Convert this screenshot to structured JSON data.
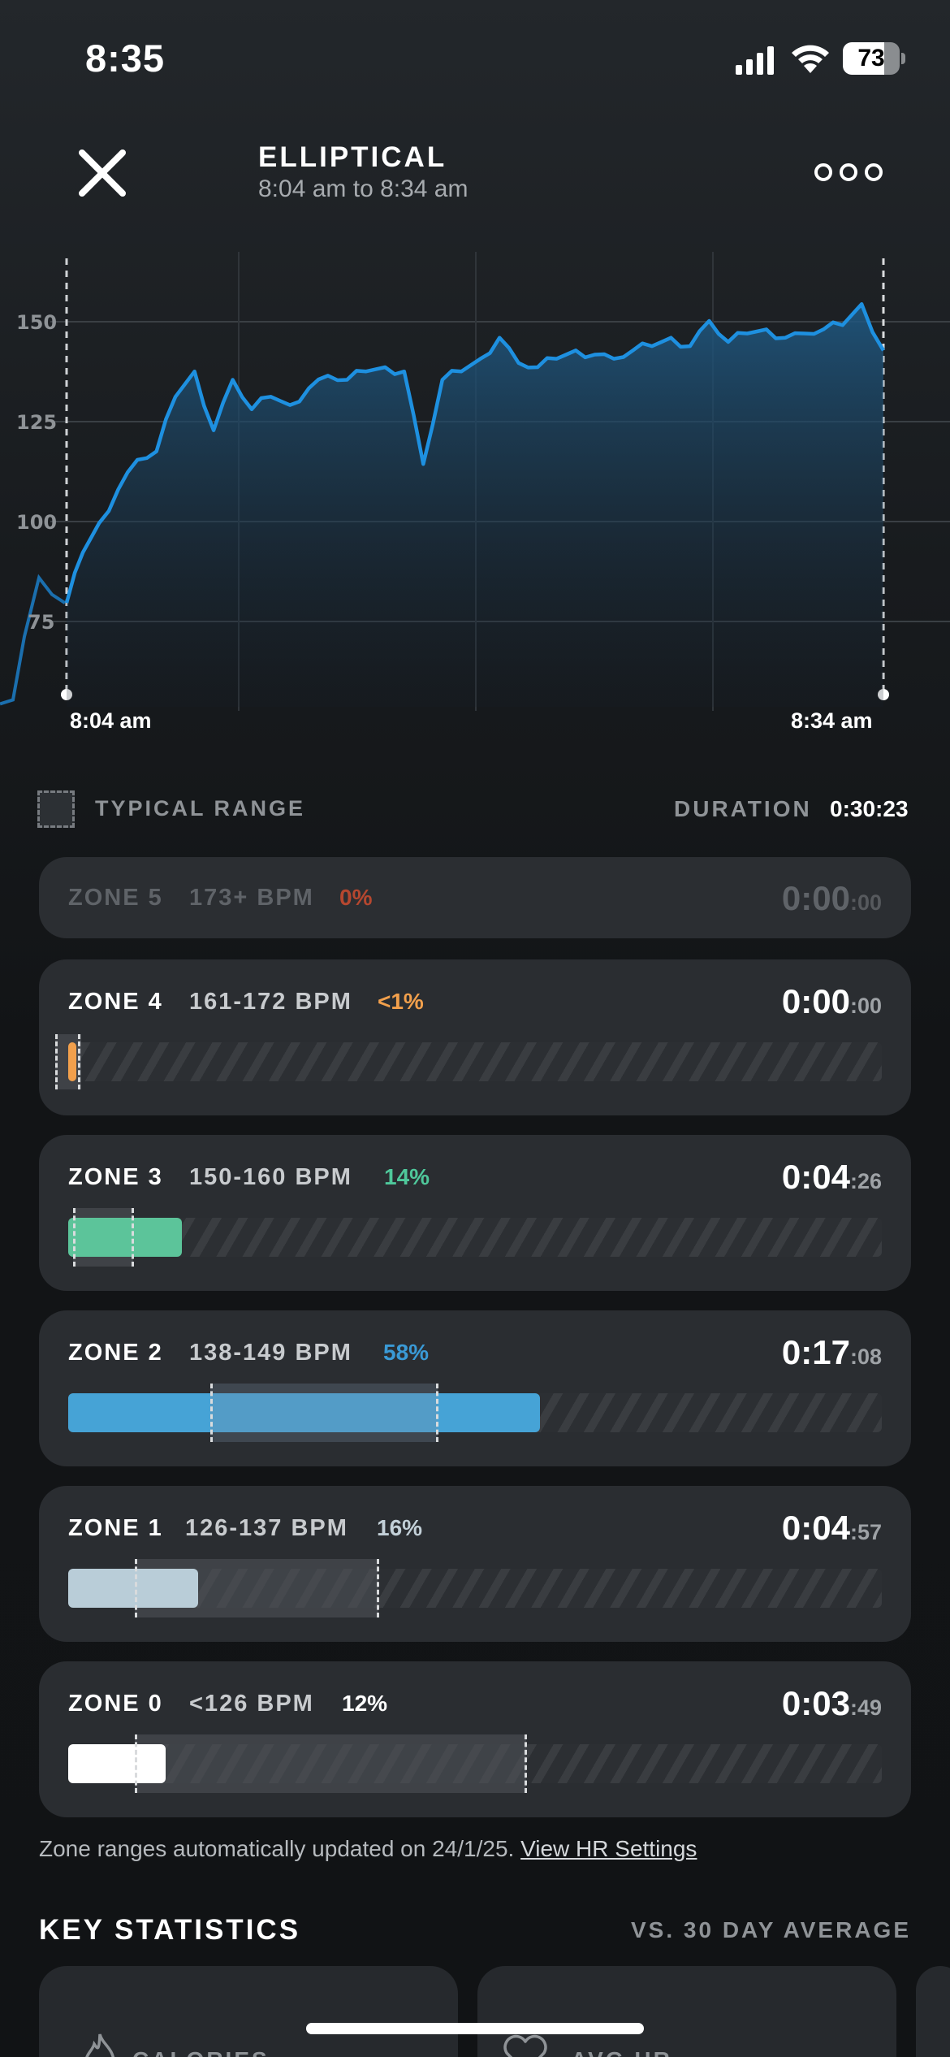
{
  "status_bar": {
    "time": "8:35",
    "battery": "73"
  },
  "header": {
    "title": "ELLIPTICAL",
    "subtitle": "8:04 am to 8:34 am"
  },
  "chart_data": {
    "type": "area",
    "series": [
      {
        "name": "",
        "color": "#1e90e0",
        "x": [
          0,
          0.6,
          1.2,
          1.9,
          2.6,
          3.3,
          4.0,
          4.7,
          5.4,
          6.1,
          6.8,
          7.5,
          8.2,
          8.9,
          9.6,
          10.3,
          11.0,
          11.7,
          12.4,
          13.1,
          13.8,
          14.5,
          15.2,
          15.9,
          16.6,
          17.3,
          18.0,
          18.7,
          19.4,
          20.1,
          20.8,
          21.5,
          22.2,
          22.9,
          23.6,
          24.3,
          25.0,
          25.7,
          26.4,
          27.1,
          27.8,
          28.5,
          29.2,
          30.0
        ],
        "values": [
          86,
          98,
          105,
          113,
          120,
          122,
          135,
          141,
          127,
          139,
          132,
          135,
          133,
          137,
          140,
          139,
          141,
          142,
          141,
          119,
          139,
          141,
          144,
          149,
          143,
          142,
          144,
          146,
          145,
          144,
          146,
          147,
          149,
          147,
          153,
          148,
          150,
          151,
          149,
          150,
          151,
          152,
          157,
          146
        ]
      }
    ],
    "pre_series_values": [
      62,
      63,
      78,
      92,
      88,
      86
    ],
    "xlabel": "",
    "ylabel": "",
    "y_ticks": [
      150,
      125,
      100,
      75
    ],
    "ylim": [
      60,
      160
    ],
    "x_tick_labels": [
      "8:04 am",
      "8:34 am"
    ],
    "grid": true
  },
  "legend": {
    "typical_label": "TYPICAL RANGE",
    "duration_label": "DURATION",
    "duration_value": "0:30:23"
  },
  "zones": [
    {
      "name": "ZONE 5",
      "bpm": "173+ BPM",
      "pct": "0%",
      "pct_color": "#b5472f",
      "time_main": "0:00",
      "time_secs": ":00",
      "dim": true
    },
    {
      "name": "ZONE 4",
      "bpm": "161-172 BPM",
      "pct": "<1%",
      "pct_color": "#f2a04c",
      "time_main": "0:00",
      "time_secs": ":00",
      "fill_fraction": 0.01,
      "fill_color": "#f2a04c"
    },
    {
      "name": "ZONE 3",
      "bpm": "150-160 BPM",
      "pct": "14%",
      "pct_color": "#4fc89b",
      "time_main": "0:04",
      "time_secs": ":26",
      "fill_fraction": 0.14,
      "fill_color": "#5cc49a"
    },
    {
      "name": "ZONE 2",
      "bpm": "138-149 BPM",
      "pct": "58%",
      "pct_color": "#3a9ad6",
      "time_main": "0:17",
      "time_secs": ":08",
      "fill_fraction": 0.58,
      "fill_color": "#46a3d6"
    },
    {
      "name": "ZONE 1",
      "bpm": "126-137 BPM",
      "pct": "16%",
      "pct_color": "#c3d0d8",
      "time_main": "0:04",
      "time_secs": ":57",
      "fill_fraction": 0.16,
      "fill_color": "#b9cdd8"
    },
    {
      "name": "ZONE 0",
      "bpm": "<126 BPM",
      "pct": "12%",
      "pct_color": "#ffffff",
      "time_main": "0:03",
      "time_secs": ":49",
      "fill_fraction": 0.12,
      "fill_color": "#ffffff"
    }
  ],
  "footnote": {
    "text": "Zone ranges automatically updated on 24/1/25. ",
    "link": "View HR Settings"
  },
  "key_statistics": {
    "title": "KEY STATISTICS",
    "comparison": "VS. 30 DAY AVERAGE",
    "cards": [
      "CALORIES",
      "AVG HR"
    ]
  },
  "icons": {
    "close": "close-icon",
    "more": "more-icon",
    "signal": "signal-icon",
    "wifi": "wifi-icon",
    "calories": "flame-icon",
    "avg_hr": "heart-icon"
  }
}
